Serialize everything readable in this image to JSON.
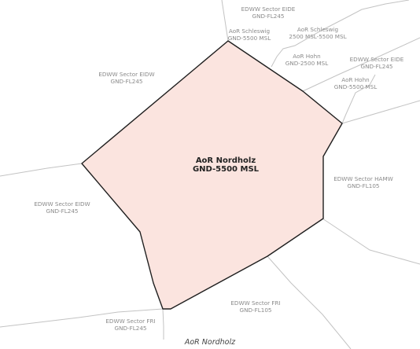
{
  "map": {
    "main_area": {
      "name": "AoR Nordholz",
      "limits": "GND-5500 MSL"
    },
    "sectors": [
      {
        "id": "eide-top",
        "name": "EDWW Sector EIDE",
        "limits": "GND-FL245"
      },
      {
        "id": "aor-schleswig",
        "name": "AoR Schleswig",
        "limits": "GND-5500 MSL"
      },
      {
        "id": "aor-schleswig-upper",
        "name": "AoR Schleswig",
        "limits": "2500 MSL-5500 MSL"
      },
      {
        "id": "aor-hohn-lower",
        "name": "AoR Hohn",
        "limits": "GND-2500 MSL"
      },
      {
        "id": "eide-right",
        "name": "EDWW Sector EIDE",
        "limits": "GND-FL245"
      },
      {
        "id": "aor-hohn",
        "name": "AoR Hohn",
        "limits": "GND-5500 MSL"
      },
      {
        "id": "eidw-top",
        "name": "EDWW Sector EIDW",
        "limits": "GND-FL245"
      },
      {
        "id": "eidw-left",
        "name": "EDWW Sector EIDW",
        "limits": "GND-FL245"
      },
      {
        "id": "hamw",
        "name": "EDWW Sector HAMW",
        "limits": "GND-FL105"
      },
      {
        "id": "fri-center",
        "name": "EDWW Sector FRI",
        "limits": "GND-FL105"
      },
      {
        "id": "fri-bottom",
        "name": "EDWW Sector FRI",
        "limits": "GND-FL245"
      }
    ],
    "caption": "AoR Nordholz",
    "colors": {
      "area_fill": "#fbe4df",
      "area_border": "#1f1f1f",
      "sector_border": "#c3c3c3",
      "label_text": "#8a8a8a"
    }
  }
}
